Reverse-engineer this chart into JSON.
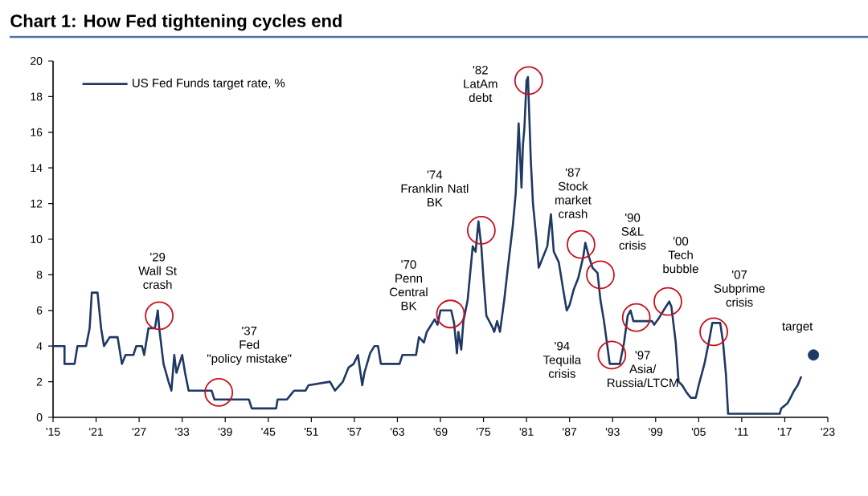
{
  "chart_data": {
    "type": "line",
    "title": "Chart 1: How Fed tightening cycles end",
    "xlim": [
      1915,
      2023
    ],
    "xticks": [
      {
        "value": 1915,
        "label": "'15"
      },
      {
        "value": 1921,
        "label": "'21"
      },
      {
        "value": 1927,
        "label": "'27"
      },
      {
        "value": 1933,
        "label": "'33"
      },
      {
        "value": 1939,
        "label": "'39"
      },
      {
        "value": 1945,
        "label": "'45"
      },
      {
        "value": 1951,
        "label": "'51"
      },
      {
        "value": 1957,
        "label": "'57"
      },
      {
        "value": 1963,
        "label": "'63"
      },
      {
        "value": 1969,
        "label": "'69"
      },
      {
        "value": 1975,
        "label": "'75"
      },
      {
        "value": 1981,
        "label": "'81"
      },
      {
        "value": 1987,
        "label": "'87"
      },
      {
        "value": 1993,
        "label": "'93"
      },
      {
        "value": 1999,
        "label": "'99"
      },
      {
        "value": 2005,
        "label": "'05"
      },
      {
        "value": 2011,
        "label": "'11"
      },
      {
        "value": 2017,
        "label": "'17"
      },
      {
        "value": 2023,
        "label": "'23"
      }
    ],
    "ylim": [
      0,
      20
    ],
    "yticks": [
      0,
      2,
      4,
      6,
      8,
      10,
      12,
      14,
      16,
      18,
      20
    ],
    "legend": "top left",
    "marker": "none",
    "line_style": "solid",
    "series": [
      {
        "name": "US Fed Funds target rate, %",
        "color": "#1f3864",
        "x": [
          1915,
          1916.6,
          1916.6,
          1918.0,
          1918.4,
          1919.6,
          1920.1,
          1920.4,
          1921.2,
          1921.7,
          1922.1,
          1922.9,
          1924.0,
          1924.6,
          1925.1,
          1926.2,
          1926.6,
          1927.4,
          1927.7,
          1928.3,
          1929.2,
          1929.6,
          1929.8,
          1930.4,
          1931.1,
          1931.5,
          1931.9,
          1932.2,
          1933.0,
          1933.4,
          1933.9,
          1937.1,
          1937.5,
          1942.3,
          1942.7,
          1946.1,
          1946.3,
          1947.6,
          1948.0,
          1948.6,
          1950.2,
          1950.6,
          1953.6,
          1954.3,
          1955.4,
          1956.2,
          1956.9,
          1957.5,
          1958.1,
          1958.4,
          1959.2,
          1959.8,
          1960.3,
          1960.7,
          1963.3,
          1963.7,
          1965.6,
          1966.0,
          1966.7,
          1967.1,
          1968.2,
          1968.6,
          1969.0,
          1970.5,
          1970.9,
          1971.3,
          1971.5,
          1971.9,
          1972.2,
          1972.8,
          1973.5,
          1973.9,
          1974.3,
          1974.7,
          1975.0,
          1975.4,
          1975.8,
          1976.2,
          1976.5,
          1976.9,
          1977.3,
          1977.9,
          1978.4,
          1979.1,
          1979.5,
          1979.9,
          1980.3,
          1980.5,
          1980.7,
          1981.0,
          1981.2,
          1981.6,
          1981.9,
          1982.4,
          1982.7,
          1983.3,
          1983.9,
          1984.4,
          1984.8,
          1985.5,
          1986.1,
          1986.6,
          1987.0,
          1987.6,
          1988.2,
          1988.9,
          1989.2,
          1989.7,
          1990.2,
          1990.9,
          1991.3,
          1991.8,
          1992.3,
          1992.6,
          1994.0,
          1994.6,
          1995.1,
          1995.5,
          1995.9,
          1998.5,
          1998.8,
          1999.5,
          2000.1,
          2000.9,
          2001.2,
          2001.8,
          2002.2,
          2002.7,
          2003.3,
          2003.9,
          2004.6,
          2005.0,
          2005.8,
          2006.5,
          2006.9,
          2008.0,
          2008.4,
          2008.8,
          2009.1,
          2016.3,
          2016.5,
          2017.4,
          2017.8,
          2018.3,
          2018.8,
          2019.3
        ],
        "values": [
          4.0,
          4.0,
          3.0,
          3.0,
          4.0,
          4.0,
          5.0,
          7.0,
          7.0,
          5.0,
          4.0,
          4.5,
          4.5,
          3.0,
          3.5,
          3.5,
          4.0,
          4.0,
          3.5,
          5.0,
          5.0,
          6.0,
          5.0,
          3.0,
          2.0,
          1.5,
          3.5,
          2.5,
          3.5,
          2.5,
          1.5,
          1.5,
          1.0,
          1.0,
          0.5,
          0.5,
          1.0,
          1.0,
          1.2,
          1.5,
          1.5,
          1.8,
          2.0,
          1.5,
          2.0,
          2.8,
          3.0,
          3.5,
          1.8,
          2.5,
          3.6,
          4.0,
          4.0,
          3.0,
          3.0,
          3.5,
          3.5,
          4.5,
          4.2,
          4.8,
          5.5,
          5.2,
          6.0,
          6.0,
          5.3,
          3.6,
          4.8,
          3.8,
          5.4,
          6.6,
          9.6,
          9.3,
          11.0,
          9.6,
          7.8,
          5.7,
          5.4,
          5.1,
          4.8,
          5.4,
          4.8,
          6.6,
          8.4,
          10.8,
          12.6,
          16.5,
          12.9,
          15.3,
          16.2,
          18.9,
          19.1,
          14.4,
          12.0,
          9.9,
          8.4,
          9.0,
          9.6,
          11.4,
          9.3,
          8.7,
          7.2,
          6.0,
          6.3,
          7.2,
          7.8,
          9.0,
          9.8,
          9.0,
          8.4,
          8.1,
          6.6,
          5.4,
          3.9,
          3.0,
          3.0,
          4.2,
          5.7,
          6.0,
          5.4,
          5.4,
          5.2,
          5.6,
          6.0,
          6.5,
          6.2,
          4.2,
          2.0,
          1.8,
          1.4,
          1.1,
          1.1,
          1.8,
          3.0,
          4.4,
          5.3,
          5.3,
          4.2,
          2.4,
          0.2,
          0.2,
          0.5,
          0.8,
          1.1,
          1.5,
          1.8,
          2.3
        ]
      },
      {
        "type": "scatter",
        "color": "#1f3864",
        "marker": "circle",
        "x": [
          2021
        ],
        "values": [
          3.5
        ]
      }
    ],
    "annotations": [
      {
        "text": "'29\nWall St\ncrash",
        "x": 1929.8,
        "y": 5.7
      },
      {
        "text": "'37\nFed\n\"policy mistake\"",
        "x": 1938.1,
        "y": 1.4
      },
      {
        "text": "'70\nPenn\nCentral\nBK",
        "x": 1970.4,
        "y": 5.8
      },
      {
        "text": "'74\nFranklin Natl\nBK",
        "x": 1974.7,
        "y": 10.5
      },
      {
        "text": "'82\nLatAm\ndebt",
        "x": 1981.3,
        "y": 18.9
      },
      {
        "text": "'87\nStock\nmarket\ncrash",
        "x": 1988.6,
        "y": 9.7
      },
      {
        "text": "'90\nS&L\ncrisis",
        "x": 1991.3,
        "y": 8.0
      },
      {
        "text": "'94\nTequila\ncrisis",
        "x": 1992.9,
        "y": 3.5
      },
      {
        "text": "'97\nAsia/\nRussia/LTCM",
        "x": 1996.3,
        "y": 5.6
      },
      {
        "text": "'00\nTech\nbubble",
        "x": 2000.7,
        "y": 6.5
      },
      {
        "text": "'07\nSubprime\ncrisis",
        "x": 2007.1,
        "y": 4.8
      },
      {
        "text": "target",
        "x": 2021,
        "y": 3.5
      }
    ]
  }
}
